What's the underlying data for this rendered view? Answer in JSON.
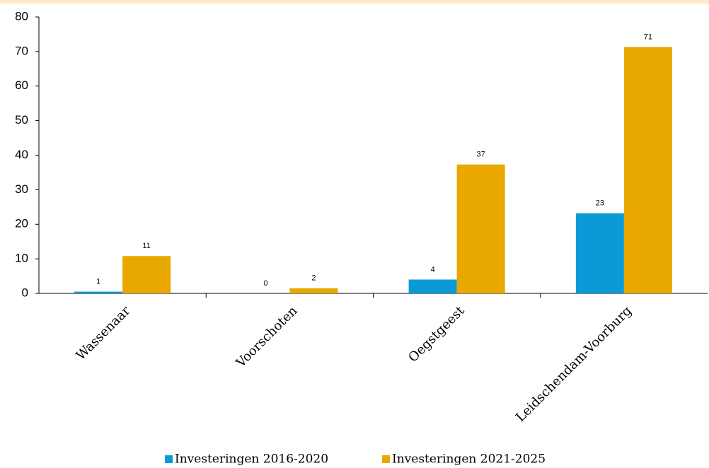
{
  "chart_data": {
    "type": "bar",
    "categories": [
      "Wassenaar",
      "Voorschoten",
      "Oegstgeest",
      "Leidschendam-Voorburg"
    ],
    "series": [
      {
        "name": "Investeringen 2016-2020",
        "color": "#0a9ad8",
        "values": [
          0.5,
          0,
          4,
          23.2
        ],
        "value_labels": [
          "1",
          "0",
          "4",
          "23"
        ]
      },
      {
        "name": "Investeringen 2021-2025",
        "color": "#e8a800",
        "values": [
          10.8,
          1.5,
          37.3,
          71.3
        ],
        "value_labels": [
          "11",
          "2",
          "37",
          "71"
        ]
      }
    ],
    "ylim": [
      0,
      80
    ],
    "yticks": [
      0,
      10,
      20,
      30,
      40,
      50,
      60,
      70,
      80
    ],
    "grid": false,
    "legend": "bottom"
  }
}
